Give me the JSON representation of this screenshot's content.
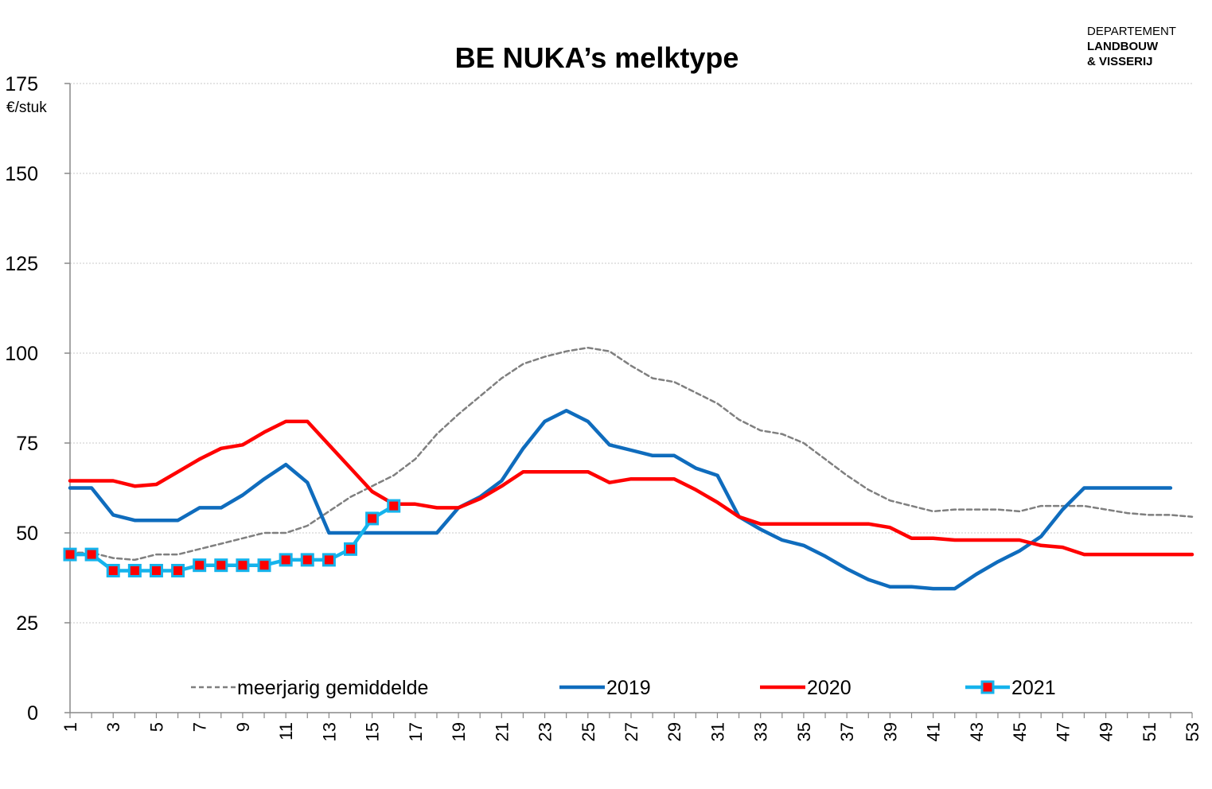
{
  "chart_data": {
    "type": "line",
    "title": "BE NUKA’s melktype",
    "ylabel": "€/stuk",
    "ylim": [
      0,
      175
    ],
    "yticks": [
      "0",
      "25",
      "50",
      "75",
      "100",
      "125",
      "150",
      "175"
    ],
    "xlim": [
      1,
      53
    ],
    "xticks": [
      "1",
      "3",
      "5",
      "7",
      "9",
      "11",
      "13",
      "15",
      "17",
      "19",
      "21",
      "23",
      "25",
      "27",
      "29",
      "31",
      "33",
      "35",
      "37",
      "39",
      "41",
      "43",
      "45",
      "47",
      "49",
      "51",
      "53"
    ],
    "grid": true,
    "legend_position": "bottom",
    "series": [
      {
        "name": "meerjarig gemiddelde",
        "color": "#7f7f7f",
        "style": "dashed",
        "x": [
          1,
          2,
          3,
          4,
          5,
          6,
          7,
          8,
          9,
          10,
          11,
          12,
          13,
          14,
          15,
          16,
          17,
          18,
          19,
          20,
          21,
          22,
          23,
          24,
          25,
          26,
          27,
          28,
          29,
          30,
          31,
          32,
          33,
          34,
          35,
          36,
          37,
          38,
          39,
          40,
          41,
          42,
          43,
          44,
          45,
          46,
          47,
          48,
          49,
          50,
          51,
          52,
          53
        ],
        "values": [
          44.5,
          44.5,
          43,
          42.5,
          44,
          44,
          45.5,
          47,
          48.5,
          50,
          50,
          52,
          56,
          60,
          63,
          66,
          70.5,
          77.5,
          83,
          88,
          93,
          97,
          99,
          100.5,
          101.5,
          100.5,
          96.5,
          93,
          92,
          89,
          86,
          81.5,
          78.5,
          77.5,
          75,
          70.5,
          66,
          62,
          59,
          57.5,
          56,
          56.5,
          56.5,
          56.5,
          56,
          57.5,
          57.5,
          57.5,
          56.5,
          55.5,
          55,
          55,
          54.5
        ]
      },
      {
        "name": "2019",
        "color": "#0f6cbd",
        "style": "solid",
        "x": [
          1,
          2,
          3,
          4,
          5,
          6,
          7,
          8,
          9,
          10,
          11,
          12,
          13,
          14,
          15,
          16,
          17,
          18,
          19,
          20,
          21,
          22,
          23,
          24,
          25,
          26,
          27,
          28,
          29,
          30,
          31,
          32,
          33,
          34,
          35,
          36,
          37,
          38,
          39,
          40,
          41,
          42,
          43,
          44,
          45,
          46,
          47,
          48,
          49,
          50,
          51,
          52
        ],
        "values": [
          62.5,
          62.5,
          55,
          53.5,
          53.5,
          53.5,
          57,
          57,
          60.5,
          65,
          69,
          64,
          50,
          50,
          50,
          50,
          50,
          50,
          57,
          60,
          64.5,
          73.5,
          81,
          84,
          81,
          74.5,
          73,
          71.5,
          71.5,
          68,
          66,
          54.5,
          51,
          48,
          46.5,
          43.5,
          40,
          37,
          35,
          35,
          34.5,
          34.5,
          38.5,
          42,
          45,
          49,
          56.5,
          62.5,
          62.5,
          62.5,
          62.5,
          62.5
        ]
      },
      {
        "name": "2020",
        "color": "#ff0000",
        "style": "solid",
        "x": [
          1,
          2,
          3,
          4,
          5,
          6,
          7,
          8,
          9,
          10,
          11,
          12,
          13,
          14,
          15,
          16,
          17,
          18,
          19,
          20,
          21,
          22,
          23,
          24,
          25,
          26,
          27,
          28,
          29,
          30,
          31,
          32,
          33,
          34,
          35,
          36,
          37,
          38,
          39,
          40,
          41,
          42,
          43,
          44,
          45,
          46,
          47,
          48,
          49,
          50,
          51,
          52,
          53
        ],
        "values": [
          64.5,
          64.5,
          64.5,
          63,
          63.5,
          67,
          70.5,
          73.5,
          74.5,
          78,
          81,
          81,
          74.5,
          68,
          61.5,
          58,
          58,
          57,
          57,
          59.5,
          63,
          67,
          67,
          67,
          67,
          64,
          65,
          65,
          65,
          62,
          58.5,
          54.5,
          52.5,
          52.5,
          52.5,
          52.5,
          52.5,
          52.5,
          51.5,
          48.5,
          48.5,
          48,
          48,
          48,
          48,
          46.5,
          46,
          44,
          44,
          44,
          44,
          44,
          44
        ]
      },
      {
        "name": "2021",
        "color": "#15b3ec",
        "marker_color": "#ff0000",
        "style": "solid-markers",
        "x": [
          1,
          2,
          3,
          4,
          5,
          6,
          7,
          8,
          9,
          10,
          11,
          12,
          13,
          14,
          15,
          16
        ],
        "values": [
          44,
          44,
          39.5,
          39.5,
          39.5,
          39.5,
          41,
          41,
          41,
          41,
          42.5,
          42.5,
          42.5,
          45.5,
          54,
          57.5
        ]
      }
    ]
  },
  "logo": {
    "line1": "DEPARTEMENT",
    "line2": "LANDBOUW",
    "line3": "& VISSERIJ"
  }
}
